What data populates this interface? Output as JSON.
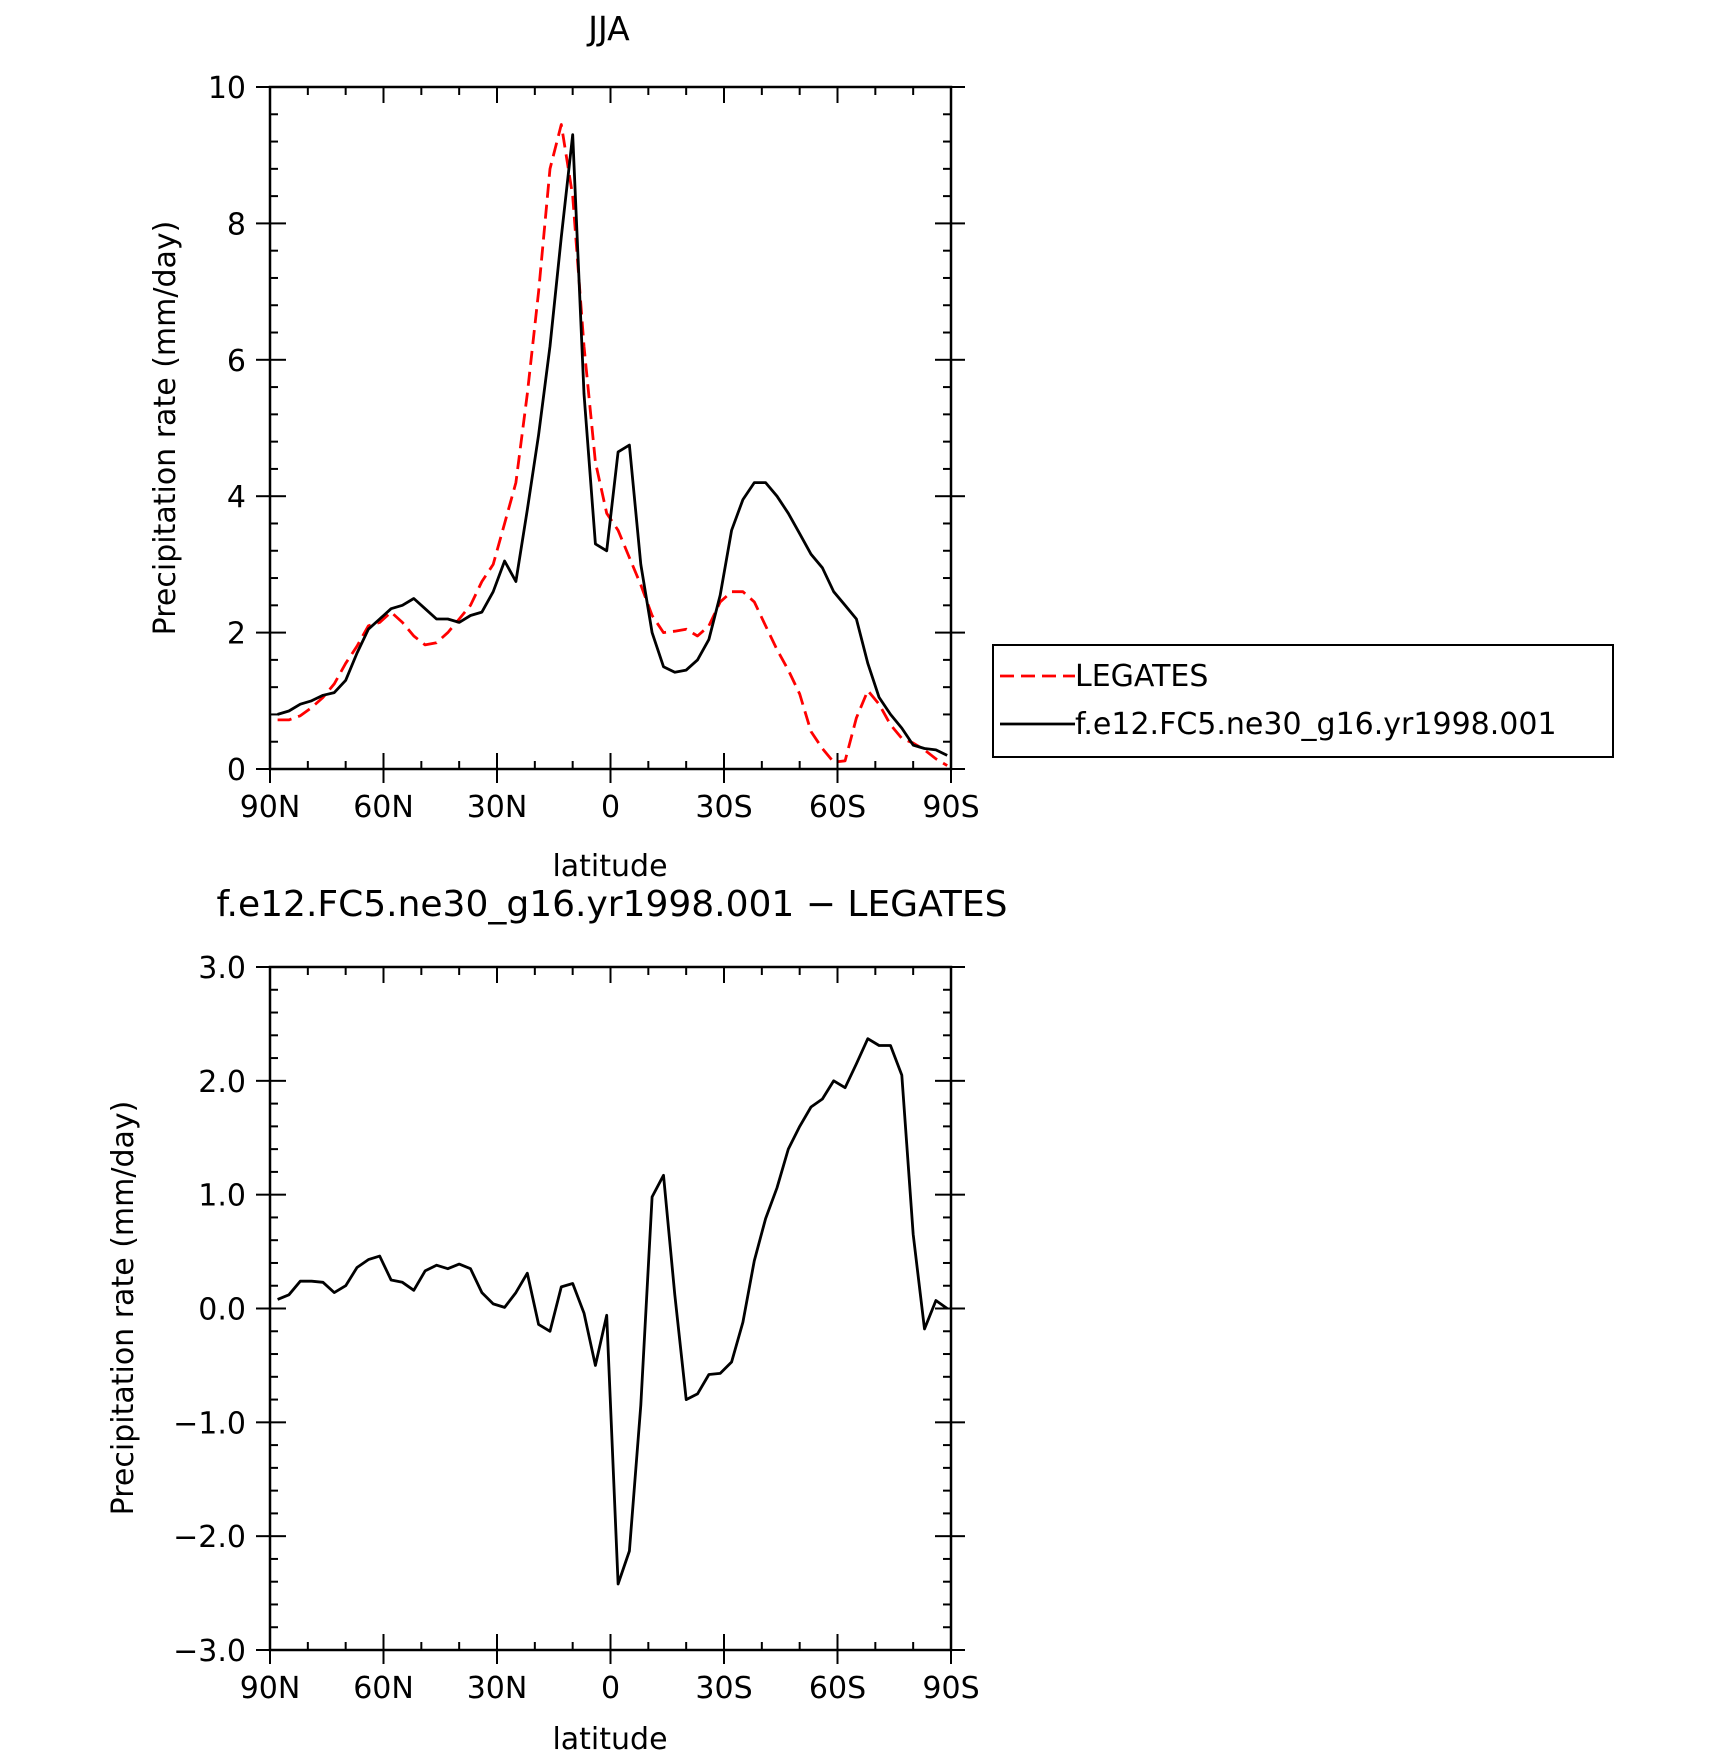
{
  "chart_data": [
    {
      "type": "line",
      "title": "JJA",
      "xlabel": "latitude",
      "ylabel": "Precipitation rate (mm/day)",
      "xlim": [
        90,
        -90
      ],
      "ylim": [
        0,
        10
      ],
      "x_ticks": [
        90,
        60,
        30,
        0,
        -30,
        -60,
        -90
      ],
      "x_tick_labels": [
        "90N",
        "60N",
        "30N",
        "0",
        "30S",
        "60S",
        "90S"
      ],
      "y_ticks": [
        0,
        2,
        4,
        6,
        8,
        10
      ],
      "y_tick_labels": [
        "0",
        "2",
        "4",
        "6",
        "8",
        "10"
      ],
      "legend_position": "right",
      "series": [
        {
          "name": "LEGATES",
          "color": "#ff0000",
          "dash": "dashed",
          "x": [
            88,
            85,
            82,
            79,
            76,
            73,
            70,
            67,
            64,
            61,
            58,
            55,
            52,
            49,
            46,
            43,
            40,
            37,
            34,
            31,
            28,
            25,
            22,
            19,
            16,
            13,
            10,
            7,
            4,
            1,
            -2,
            -5,
            -8,
            -11,
            -14,
            -17,
            -20,
            -23,
            -26,
            -29,
            -32,
            -35,
            -38,
            -41,
            -44,
            -47,
            -50,
            -53,
            -56,
            -59,
            -62,
            -65,
            -68,
            -71,
            -74,
            -77,
            -80,
            -83,
            -86,
            -89
          ],
          "y": [
            0.72,
            0.72,
            0.78,
            0.9,
            1.05,
            1.25,
            1.55,
            1.8,
            2.1,
            2.15,
            2.3,
            2.15,
            1.95,
            1.82,
            1.85,
            2.0,
            2.2,
            2.4,
            2.75,
            3.0,
            3.6,
            4.2,
            5.5,
            7.0,
            8.8,
            9.45,
            8.4,
            6.2,
            4.5,
            3.75,
            3.5,
            3.1,
            2.7,
            2.25,
            2.0,
            2.02,
            2.05,
            1.95,
            2.1,
            2.45,
            2.6,
            2.6,
            2.45,
            2.1,
            1.75,
            1.45,
            1.1,
            0.55,
            0.3,
            0.1,
            0.12,
            0.75,
            1.15,
            0.95,
            0.65,
            0.45,
            0.38,
            0.28,
            0.15,
            0.05
          ]
        },
        {
          "name": "f.e12.FC5.ne30_g16.yr1998.001",
          "color": "#000000",
          "dash": "solid",
          "x": [
            88,
            85,
            82,
            79,
            76,
            73,
            70,
            67,
            64,
            61,
            58,
            55,
            52,
            49,
            46,
            43,
            40,
            37,
            34,
            31,
            28,
            25,
            22,
            19,
            16,
            13,
            10,
            7,
            4,
            1,
            -2,
            -5,
            -8,
            -11,
            -14,
            -17,
            -20,
            -23,
            -26,
            -29,
            -32,
            -35,
            -38,
            -41,
            -44,
            -47,
            -50,
            -53,
            -56,
            -59,
            -62,
            -65,
            -68,
            -71,
            -74,
            -77,
            -80,
            -83,
            -86,
            -89
          ],
          "y": [
            0.8,
            0.85,
            0.95,
            1.0,
            1.08,
            1.12,
            1.3,
            1.7,
            2.05,
            2.2,
            2.35,
            2.4,
            2.5,
            2.35,
            2.2,
            2.2,
            2.15,
            2.25,
            2.3,
            2.6,
            3.05,
            2.75,
            3.8,
            4.9,
            6.2,
            7.8,
            9.3,
            5.5,
            3.3,
            3.2,
            4.65,
            4.75,
            3.0,
            2.0,
            1.5,
            1.42,
            1.45,
            1.6,
            1.9,
            2.55,
            3.5,
            3.95,
            4.2,
            4.2,
            4.0,
            3.75,
            3.45,
            3.15,
            2.95,
            2.6,
            2.4,
            2.2,
            1.55,
            1.05,
            0.8,
            0.6,
            0.35,
            0.3,
            0.28,
            0.2
          ]
        }
      ]
    },
    {
      "type": "line",
      "title": "f.e12.FC5.ne30_g16.yr1998.001 − LEGATES",
      "xlabel": "latitude",
      "ylabel": "Precipitation rate (mm/day)",
      "xlim": [
        90,
        -90
      ],
      "ylim": [
        -3,
        3
      ],
      "x_ticks": [
        90,
        60,
        30,
        0,
        -30,
        -60,
        -90
      ],
      "x_tick_labels": [
        "90N",
        "60N",
        "30N",
        "0",
        "30S",
        "60S",
        "90S"
      ],
      "y_ticks": [
        -3,
        -2,
        -1,
        0,
        1,
        2,
        3
      ],
      "y_tick_labels": [
        "−3.0",
        "−2.0",
        "−1.0",
        "0.0",
        "1.0",
        "2.0",
        "3.0"
      ],
      "series": [
        {
          "color": "#000000",
          "dash": "solid",
          "x": [
            88,
            85,
            82,
            79,
            76,
            73,
            70,
            67,
            64,
            61,
            58,
            55,
            52,
            49,
            46,
            43,
            40,
            37,
            34,
            31,
            28,
            25,
            22,
            19,
            16,
            13,
            10,
            7,
            4,
            1,
            -2,
            -5,
            -8,
            -11,
            -14,
            -17,
            -20,
            -23,
            -26,
            -29,
            -32,
            -35,
            -38,
            -41,
            -44,
            -47,
            -50,
            -53,
            -56,
            -59,
            -62,
            -65,
            -68,
            -71,
            -74,
            -77,
            -80,
            -83,
            -86,
            -89
          ],
          "y": [
            0.08,
            0.12,
            0.24,
            0.24,
            0.23,
            0.14,
            0.2,
            0.36,
            0.43,
            0.46,
            0.25,
            0.23,
            0.16,
            0.33,
            0.38,
            0.35,
            0.39,
            0.35,
            0.14,
            0.04,
            0.01,
            0.14,
            0.31,
            -0.14,
            -0.2,
            0.19,
            0.22,
            -0.04,
            -0.5,
            -0.06,
            -2.42,
            -2.13,
            -0.85,
            0.98,
            1.17,
            0.12,
            -0.8,
            -0.75,
            -0.58,
            -0.57,
            -0.47,
            -0.12,
            0.42,
            0.79,
            1.06,
            1.4,
            1.6,
            1.77,
            1.84,
            2.0,
            1.94,
            2.15,
            2.37,
            2.31,
            2.31,
            2.05,
            0.65,
            -0.18,
            0.07,
            0.0
          ]
        }
      ]
    }
  ]
}
